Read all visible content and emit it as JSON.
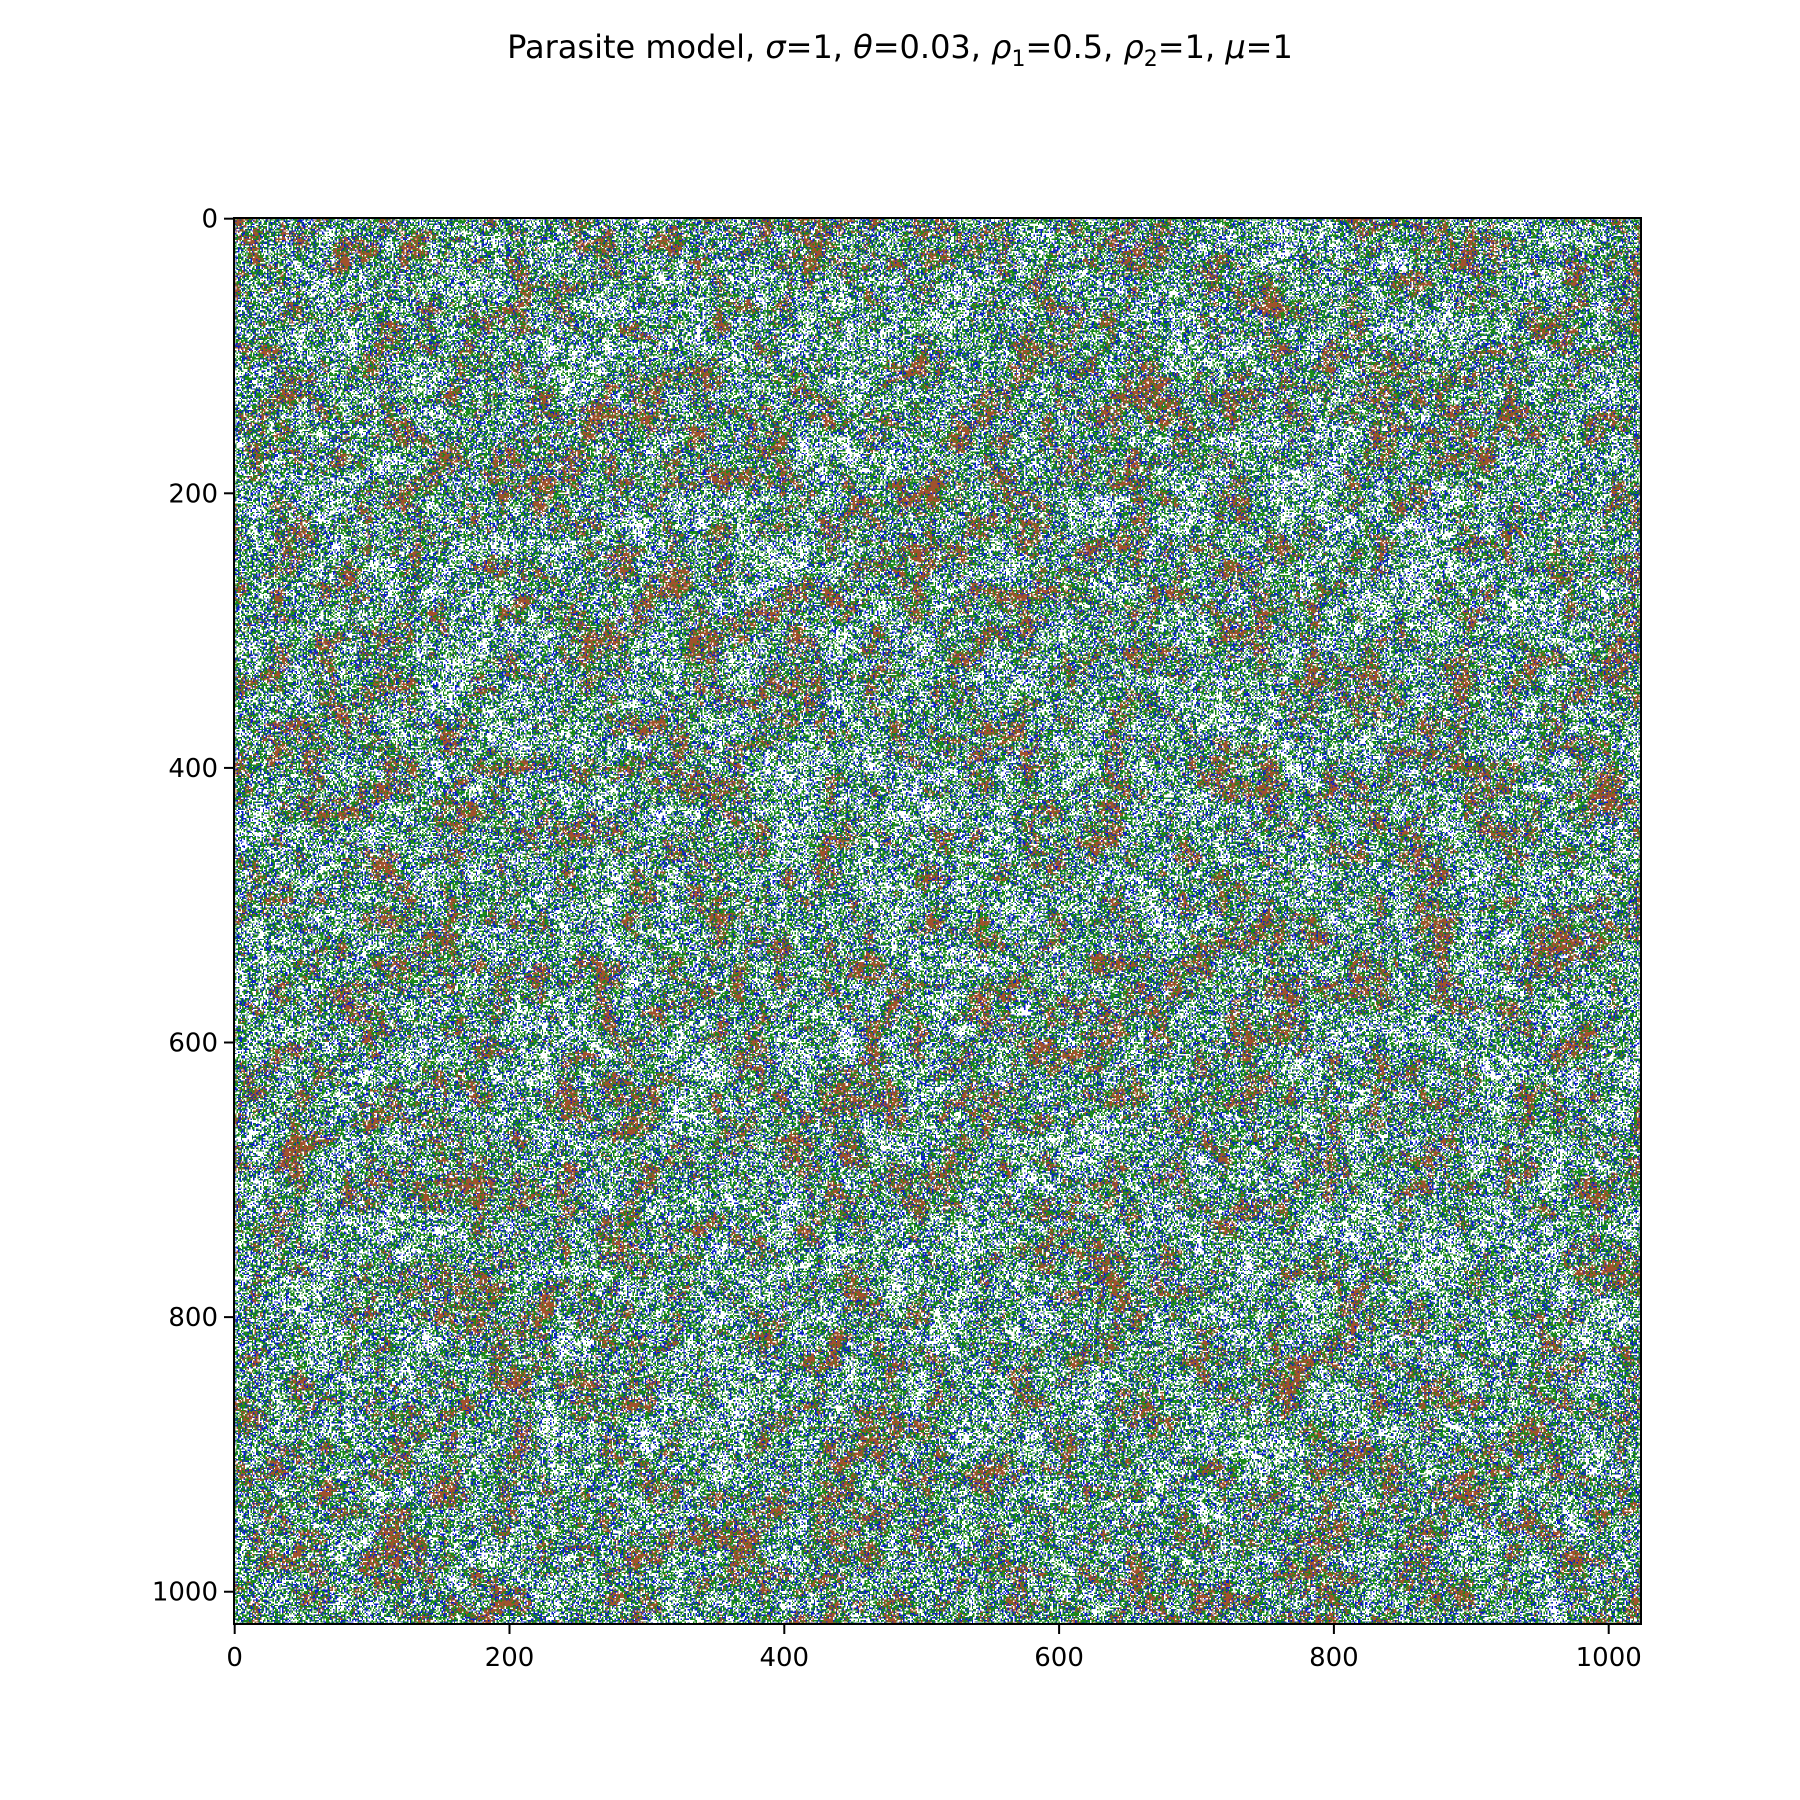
{
  "chart_data": {
    "type": "heatmap",
    "title_parts": [
      {
        "t": "Parasite model, ",
        "s": "n"
      },
      {
        "t": "σ",
        "s": "i"
      },
      {
        "t": "=1, ",
        "s": "n"
      },
      {
        "t": "θ",
        "s": "i"
      },
      {
        "t": "=0.03, ",
        "s": "n"
      },
      {
        "t": "ρ",
        "s": "i"
      },
      {
        "t": "1",
        "s": "sub"
      },
      {
        "t": "=0.5, ",
        "s": "n"
      },
      {
        "t": "ρ",
        "s": "i"
      },
      {
        "t": "2",
        "s": "sub"
      },
      {
        "t": "=1, ",
        "s": "n"
      },
      {
        "t": "μ",
        "s": "i"
      },
      {
        "t": "=1",
        "s": "n"
      }
    ],
    "grid_size": 1024,
    "xlim": [
      -0.5,
      1023.5
    ],
    "ylim": [
      1023.5,
      -0.5
    ],
    "x_ticks": [
      0,
      200,
      400,
      600,
      800,
      1000
    ],
    "y_ticks": [
      0,
      200,
      400,
      600,
      800,
      1000
    ],
    "x_tick_labels": [
      "0",
      "200",
      "400",
      "600",
      "800",
      "1000"
    ],
    "y_tick_labels": [
      "0",
      "200",
      "400",
      "600",
      "800",
      "1000"
    ],
    "xlabel": "",
    "ylabel": "",
    "grid": false,
    "states": [
      {
        "color": "#ffffff",
        "share": 0.42
      },
      {
        "color": "#1a8a1a",
        "share": 0.24
      },
      {
        "color": "#0a1ecc",
        "share": 0.12
      },
      {
        "color": "#a0522d",
        "share": 0.22
      }
    ]
  }
}
